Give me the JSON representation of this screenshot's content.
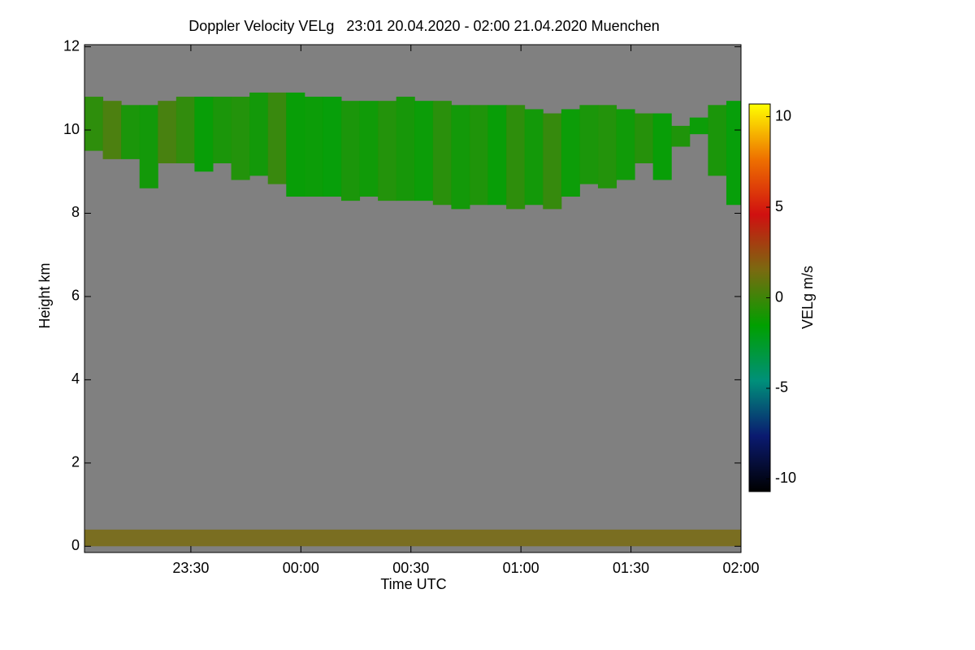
{
  "chart_data": {
    "type": "heatmap",
    "title": "Doppler Velocity VELg   23:01 20.04.2020 - 02:00 21.04.2020 Muenchen",
    "x_label": "Time UTC",
    "y_label": "Height km",
    "colorbar_label": "VELg m/s",
    "background": "#808080",
    "x": [
      -59,
      -54,
      -49,
      -44,
      -39,
      -34,
      -29,
      -24,
      -19,
      -14,
      -9,
      -4,
      1,
      6,
      11,
      16,
      21,
      26,
      31,
      36,
      41,
      46,
      51,
      56,
      61,
      66,
      71,
      76,
      81,
      86,
      91,
      96,
      101,
      106,
      111,
      116
    ],
    "x_step": 5,
    "cloud_top": [
      10.8,
      10.7,
      10.6,
      10.6,
      10.7,
      10.8,
      10.8,
      10.8,
      10.8,
      10.9,
      10.9,
      10.9,
      10.8,
      10.8,
      10.7,
      10.7,
      10.7,
      10.8,
      10.7,
      10.7,
      10.6,
      10.6,
      10.6,
      10.6,
      10.5,
      10.4,
      10.5,
      10.6,
      10.6,
      10.5,
      10.4,
      10.4,
      10.1,
      10.3,
      10.6,
      10.7
    ],
    "cloud_base": [
      9.5,
      9.3,
      9.3,
      8.6,
      9.2,
      9.2,
      9.0,
      9.2,
      8.8,
      8.9,
      8.7,
      8.4,
      8.4,
      8.4,
      8.3,
      8.4,
      8.3,
      8.3,
      8.3,
      8.2,
      8.1,
      8.2,
      8.2,
      8.1,
      8.2,
      8.1,
      8.4,
      8.7,
      8.6,
      8.8,
      9.2,
      8.8,
      9.6,
      9.9,
      8.9,
      8.2
    ],
    "velocity": [
      -0.5,
      0.3,
      -1,
      -1.2,
      0.2,
      -0.4,
      -1.5,
      -1,
      -0.8,
      -1.2,
      -0.2,
      -1.5,
      -1.4,
      -1.6,
      -1,
      -1.3,
      -0.8,
      -1.1,
      -1.4,
      -0.6,
      -1.2,
      -0.9,
      -1.5,
      -0.5,
      -1.2,
      -0.3,
      -1.4,
      -1,
      -0.8,
      -1.3,
      -0.7,
      -1.5,
      -0.9,
      -1.4,
      -1,
      -1.6
    ],
    "surface_layer": {
      "top": 0.4,
      "velocity": 1.5
    },
    "xlim": [
      -59,
      120
    ],
    "xticks": [
      {
        "value": -30,
        "label": "23:30"
      },
      {
        "value": 0,
        "label": "00:00"
      },
      {
        "value": 30,
        "label": "00:30"
      },
      {
        "value": 60,
        "label": "01:00"
      },
      {
        "value": 90,
        "label": "01:30"
      },
      {
        "value": 120,
        "label": "02:00"
      }
    ],
    "ylim": [
      -0.15,
      12.05
    ],
    "yticks": [
      0,
      2,
      4,
      6,
      8,
      10,
      12
    ],
    "clim": [
      -10.7,
      10.7
    ],
    "cticks": [
      -10,
      -5,
      0,
      5,
      10
    ],
    "colormap": [
      "#000000",
      "#0a1a70",
      "#00907a",
      "#00a000",
      "#7a6a10",
      "#d01010",
      "#ee7000",
      "#ffff00"
    ]
  }
}
